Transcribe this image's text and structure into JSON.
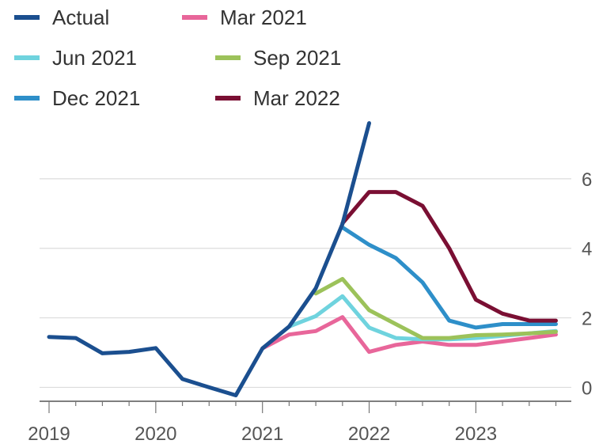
{
  "chart_data": {
    "type": "line",
    "title": "",
    "xlabel": "",
    "ylabel": "",
    "xlim": [
      2019,
      2023.85
    ],
    "ylim": [
      -0.4,
      7.5
    ],
    "y_axis_position": "right",
    "grid": "horizontal",
    "legend_position": "top-left",
    "x_ticks": [
      {
        "value": 2019,
        "label": "2019"
      },
      {
        "value": 2020,
        "label": "2020"
      },
      {
        "value": 2021,
        "label": "2021"
      },
      {
        "value": 2022,
        "label": "2022"
      },
      {
        "value": 2023,
        "label": "2023"
      }
    ],
    "y_ticks": [
      {
        "value": 0,
        "label": "0"
      },
      {
        "value": 2,
        "label": "2"
      },
      {
        "value": 4,
        "label": "4"
      },
      {
        "value": 6,
        "label": "6"
      }
    ],
    "series": [
      {
        "name": "Actual",
        "color": "#1b4f8f",
        "x": [
          2019,
          2019.25,
          2019.5,
          2019.75,
          2020,
          2020.25,
          2020.5,
          2020.75,
          2021,
          2021.25,
          2021.5,
          2021.75,
          2022
        ],
        "y": [
          1.45,
          1.42,
          0.98,
          1.02,
          1.13,
          0.24,
          0.0,
          -0.23,
          1.12,
          1.75,
          2.85,
          4.7,
          7.6
        ]
      },
      {
        "name": "Mar 2021",
        "color": "#e8669a",
        "x": [
          2021,
          2021.25,
          2021.5,
          2021.75,
          2022,
          2022.25,
          2022.5,
          2022.75,
          2023,
          2023.25,
          2023.5,
          2023.75
        ],
        "y": [
          1.12,
          1.52,
          1.62,
          2.02,
          1.02,
          1.22,
          1.32,
          1.22,
          1.22,
          1.32,
          1.42,
          1.52
        ]
      },
      {
        "name": "Jun 2021",
        "color": "#6fd3de",
        "x": [
          2021.25,
          2021.5,
          2021.75,
          2022,
          2022.25,
          2022.5,
          2022.75,
          2023,
          2023.25,
          2023.5,
          2023.75
        ],
        "y": [
          1.75,
          2.05,
          2.62,
          1.72,
          1.42,
          1.38,
          1.38,
          1.42,
          1.48,
          1.55,
          1.62
        ]
      },
      {
        "name": "Sep 2021",
        "color": "#9cc25a",
        "x": [
          2021.5,
          2021.75,
          2022,
          2022.25,
          2022.5,
          2022.75,
          2023,
          2023.25,
          2023.5,
          2023.75
        ],
        "y": [
          2.7,
          3.12,
          2.22,
          1.82,
          1.42,
          1.42,
          1.5,
          1.52,
          1.55,
          1.6
        ]
      },
      {
        "name": "Dec 2021",
        "color": "#2e8fc9",
        "x": [
          2021.75,
          2022,
          2022.25,
          2022.5,
          2022.75,
          2023,
          2023.25,
          2023.5,
          2023.75
        ],
        "y": [
          4.6,
          4.1,
          3.72,
          3.02,
          1.92,
          1.72,
          1.82,
          1.82,
          1.82
        ]
      },
      {
        "name": "Mar 2022",
        "color": "#7a0f33",
        "x": [
          2021.75,
          2022,
          2022.25,
          2022.5,
          2022.75,
          2023,
          2023.25,
          2023.5,
          2023.75
        ],
        "y": [
          4.72,
          5.62,
          5.62,
          5.22,
          4.0,
          2.52,
          2.12,
          1.92,
          1.92
        ]
      }
    ]
  }
}
